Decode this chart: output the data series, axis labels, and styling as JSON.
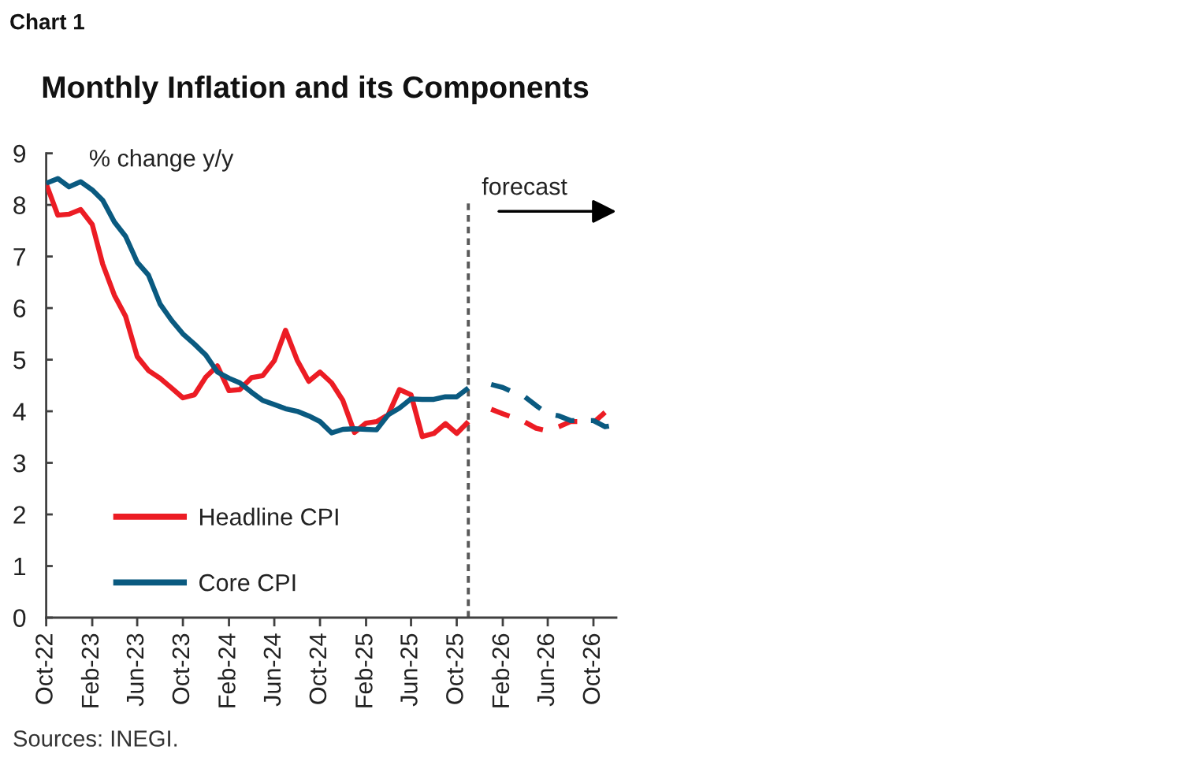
{
  "chart_data": {
    "type": "line",
    "title": "Monthly Inflation and its Components",
    "ylabel": "% change y/y",
    "annotations": [
      "Chart 1",
      "Sources: INEGI."
    ],
    "xlim": [
      "2022-10",
      "2026-12"
    ],
    "xticks": [
      {
        "value": "2022-10",
        "label": "Oct-22"
      },
      {
        "value": "2023-02",
        "label": "Feb-23"
      },
      {
        "value": "2023-06",
        "label": "Jun-23"
      },
      {
        "value": "2023-10",
        "label": "Oct-23"
      },
      {
        "value": "2024-02",
        "label": "Feb-24"
      },
      {
        "value": "2024-06",
        "label": "Jun-24"
      },
      {
        "value": "2024-10",
        "label": "Oct-24"
      },
      {
        "value": "2025-02",
        "label": "Feb-25"
      },
      {
        "value": "2025-06",
        "label": "Jun-25"
      },
      {
        "value": "2025-10",
        "label": "Oct-25"
      },
      {
        "value": "2026-02",
        "label": "Feb-26"
      },
      {
        "value": "2026-06",
        "label": "Jun-26"
      },
      {
        "value": "2026-10",
        "label": "Oct-26"
      }
    ],
    "ylim": [
      0,
      9
    ],
    "yticks": [
      0,
      1,
      2,
      3,
      4,
      5,
      6,
      7,
      8,
      9
    ],
    "legend": "bottom left",
    "ref_lines": [
      {
        "axis": "x",
        "value": "2025-11",
        "label": "forecast",
        "color": "#595959",
        "line_style": "dashed"
      }
    ],
    "series": [
      {
        "name": "Headline CPI",
        "color": "#ec1c24",
        "line_style": "solid",
        "x": [
          "2022-10",
          "2022-11",
          "2022-12",
          "2023-01",
          "2023-02",
          "2023-03",
          "2023-04",
          "2023-05",
          "2023-06",
          "2023-07",
          "2023-08",
          "2023-09",
          "2023-10",
          "2023-11",
          "2023-12",
          "2024-01",
          "2024-02",
          "2024-03",
          "2024-04",
          "2024-05",
          "2024-06",
          "2024-07",
          "2024-08",
          "2024-09",
          "2024-10",
          "2024-11",
          "2024-12",
          "2025-01",
          "2025-02",
          "2025-03",
          "2025-04",
          "2025-05",
          "2025-06",
          "2025-07",
          "2025-08",
          "2025-09",
          "2025-10",
          "2025-11"
        ],
        "values": [
          8.41,
          7.8,
          7.82,
          7.91,
          7.62,
          6.85,
          6.25,
          5.84,
          5.06,
          4.79,
          4.64,
          4.45,
          4.26,
          4.32,
          4.66,
          4.88,
          4.4,
          4.42,
          4.65,
          4.69,
          4.98,
          5.57,
          4.99,
          4.58,
          4.76,
          4.55,
          4.21,
          3.59,
          3.77,
          3.8,
          3.93,
          4.42,
          4.32,
          3.51,
          3.57,
          3.76,
          3.57,
          3.8
        ]
      },
      {
        "name": "Core CPI",
        "color": "#0a5a80",
        "line_style": "solid",
        "x": [
          "2022-10",
          "2022-11",
          "2022-12",
          "2023-01",
          "2023-02",
          "2023-03",
          "2023-04",
          "2023-05",
          "2023-06",
          "2023-07",
          "2023-08",
          "2023-09",
          "2023-10",
          "2023-11",
          "2023-12",
          "2024-01",
          "2024-02",
          "2024-03",
          "2024-04",
          "2024-05",
          "2024-06",
          "2024-07",
          "2024-08",
          "2024-09",
          "2024-10",
          "2024-11",
          "2024-12",
          "2025-01",
          "2025-02",
          "2025-03",
          "2025-04",
          "2025-05",
          "2025-06",
          "2025-07",
          "2025-08",
          "2025-09",
          "2025-10",
          "2025-11"
        ],
        "values": [
          8.42,
          8.51,
          8.35,
          8.45,
          8.29,
          8.09,
          7.67,
          7.39,
          6.89,
          6.64,
          6.08,
          5.76,
          5.5,
          5.3,
          5.09,
          4.76,
          4.64,
          4.55,
          4.37,
          4.21,
          4.13,
          4.05,
          4.0,
          3.91,
          3.8,
          3.58,
          3.65,
          3.66,
          3.65,
          3.64,
          3.93,
          4.06,
          4.24,
          4.23,
          4.23,
          4.28,
          4.28,
          4.45
        ]
      },
      {
        "color": "#ec1c24",
        "line_style": "dashed",
        "x": [
          "2026-01",
          "2026-02",
          "2026-03",
          "2026-04",
          "2026-05",
          "2026-06",
          "2026-07",
          "2026-08",
          "2026-09",
          "2026-10",
          "2026-11"
        ],
        "values": [
          4.04,
          3.95,
          3.88,
          3.79,
          3.67,
          3.62,
          3.7,
          3.8,
          3.8,
          3.78,
          3.98
        ]
      },
      {
        "color": "#0a5a80",
        "line_style": "dashed",
        "x": [
          "2026-01",
          "2026-02",
          "2026-03",
          "2026-04",
          "2026-05",
          "2026-06",
          "2026-07",
          "2026-08",
          "2026-09",
          "2026-10",
          "2026-11",
          "2026-12"
        ],
        "values": [
          4.52,
          4.46,
          4.37,
          4.28,
          4.11,
          3.95,
          3.91,
          3.82,
          3.82,
          3.82,
          3.7,
          3.74
        ]
      }
    ]
  }
}
